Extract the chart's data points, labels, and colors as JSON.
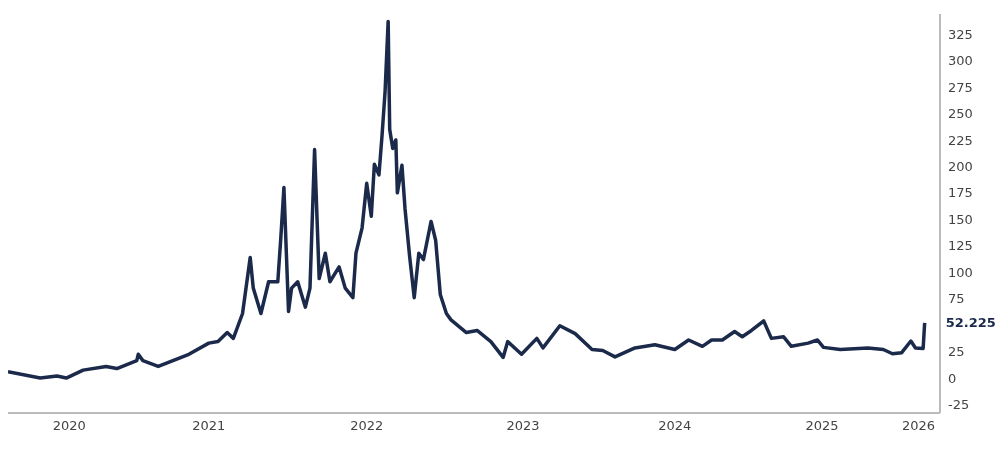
{
  "chart_data": {
    "type": "line",
    "x": [
      2019.69,
      2019.9,
      2020.01,
      2020.07,
      2020.18,
      2020.33,
      2020.4,
      2020.53,
      2020.54,
      2020.57,
      2020.67,
      2020.87,
      2021.0,
      2021.06,
      2021.12,
      2021.16,
      2021.22,
      2021.27,
      2021.29,
      2021.34,
      2021.39,
      2021.45,
      2021.47,
      2021.49,
      2021.52,
      2021.54,
      2021.58,
      2021.63,
      2021.66,
      2021.69,
      2021.72,
      2021.76,
      2021.79,
      2021.85,
      2021.89,
      2021.94,
      2021.96,
      2022.0,
      2022.03,
      2022.06,
      2022.08,
      2022.11,
      2022.13,
      2022.15,
      2022.17,
      2022.18,
      2022.2,
      2022.22,
      2022.23,
      2022.26,
      2022.28,
      2022.31,
      2022.34,
      2022.37,
      2022.4,
      2022.45,
      2022.48,
      2022.51,
      2022.55,
      2022.58,
      2022.68,
      2022.75,
      2022.84,
      2022.92,
      2022.95,
      2023.04,
      2023.14,
      2023.18,
      2023.29,
      2023.39,
      2023.5,
      2023.57,
      2023.65,
      2023.78,
      2023.91,
      2024.04,
      2024.13,
      2024.22,
      2024.28,
      2024.35,
      2024.43,
      2024.48,
      2024.54,
      2024.62,
      2024.67,
      2024.75,
      2024.8,
      2024.91,
      2024.97,
      2025.01,
      2025.12,
      2025.3,
      2025.4,
      2025.46,
      2025.52,
      2025.58,
      2025.61,
      2025.66,
      2025.67
    ],
    "series": [
      {
        "color": "#1b2a4a",
        "values": [
          6,
          0,
          2,
          0,
          7.5,
          11,
          9,
          16.5,
          22.5,
          16.5,
          11,
          22.5,
          33,
          34.5,
          43,
          37.5,
          61,
          114,
          85,
          61,
          91,
          91,
          133,
          180,
          63,
          85,
          91,
          67,
          85,
          216,
          94,
          118,
          91,
          105,
          85,
          76,
          118,
          142,
          184,
          153,
          202,
          192,
          229,
          271,
          337,
          235,
          217,
          225,
          175,
          201,
          160,
          115,
          76,
          118,
          112,
          148,
          130,
          79,
          61,
          55,
          43,
          45,
          34.5,
          19.5,
          34.5,
          22.5,
          37.5,
          28.5,
          49.5,
          42,
          27,
          26,
          20,
          28.5,
          31.5,
          27,
          36,
          30,
          36,
          36,
          44,
          39,
          45,
          54,
          37.5,
          39,
          30,
          33,
          36,
          29,
          27,
          28.5,
          27,
          23,
          24,
          35,
          28.5,
          28,
          52.225
        ],
        "value_labels": [
          null,
          null,
          null,
          null,
          null,
          null,
          null,
          null,
          null,
          null,
          null,
          null,
          null,
          null,
          null,
          null,
          null,
          null,
          null,
          null,
          null,
          null,
          null,
          null,
          null,
          null,
          null,
          null,
          null,
          null,
          null,
          null,
          null,
          null,
          null,
          null,
          null,
          null,
          null,
          null,
          null,
          null,
          null,
          null,
          null,
          null,
          null,
          null,
          null,
          null,
          null,
          null,
          null,
          null,
          null,
          null,
          null,
          null,
          null,
          null,
          null,
          null,
          null,
          null,
          null,
          null,
          null,
          null,
          null,
          null,
          null,
          null,
          null,
          null,
          null,
          null,
          null,
          null,
          null,
          null,
          null,
          null,
          null,
          null,
          null,
          null,
          null,
          null,
          null,
          null,
          null,
          null,
          null,
          null,
          null,
          null,
          null,
          null,
          "52.225"
        ]
      }
    ],
    "xlim": [
      2019.69,
      2025.77
    ],
    "xticks": [
      {
        "value": 2020.09,
        "label": "2020"
      },
      {
        "value": 2021,
        "label": "2021"
      },
      {
        "value": 2022.03,
        "label": "2022"
      },
      {
        "value": 2023.05,
        "label": "2023"
      },
      {
        "value": 2024.04,
        "label": "2024"
      },
      {
        "value": 2025,
        "label": "2025"
      },
      {
        "value": 2025.63,
        "label": "2026"
      }
    ],
    "ylim": [
      -33,
      344
    ],
    "yticks": [
      -25,
      0,
      25,
      75,
      100,
      125,
      150,
      175,
      200,
      225,
      250,
      275,
      300,
      325
    ],
    "grid": false,
    "marker": "none",
    "line_style": "solid"
  }
}
